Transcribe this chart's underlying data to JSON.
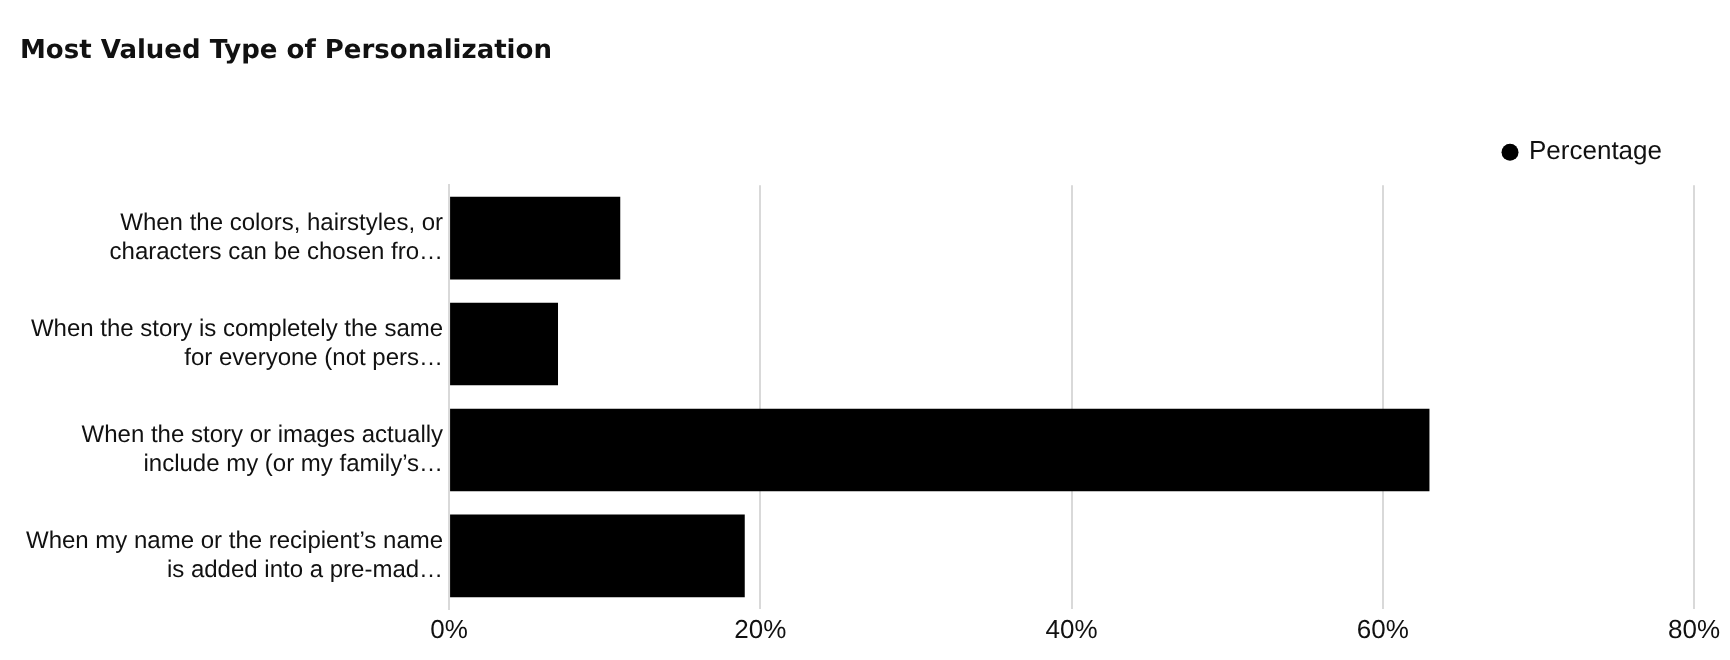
{
  "chart_data": {
    "type": "bar",
    "orientation": "horizontal",
    "title": "Most Valued Type of Personalization",
    "categories": [
      "When the colors, hairstyles, or\ncharacters can be chosen fro…",
      "When the story is completely the same\nfor everyone (not pers…",
      "When the story or images actually\ninclude my (or my family’s…",
      "When my name or the recipient’s name\nis added into a pre-mad…"
    ],
    "series": [
      {
        "name": "Percentage",
        "color": "#000000",
        "values": [
          11,
          7,
          63,
          19
        ]
      }
    ],
    "xlim": [
      0,
      80
    ],
    "xticks": [
      {
        "value": 0,
        "label": "0%"
      },
      {
        "value": 20,
        "label": "20%"
      },
      {
        "value": 40,
        "label": "40%"
      },
      {
        "value": 60,
        "label": "60%"
      },
      {
        "value": 80,
        "label": "80%"
      }
    ],
    "grid": "x",
    "legend": "top right",
    "marker": "circle"
  }
}
